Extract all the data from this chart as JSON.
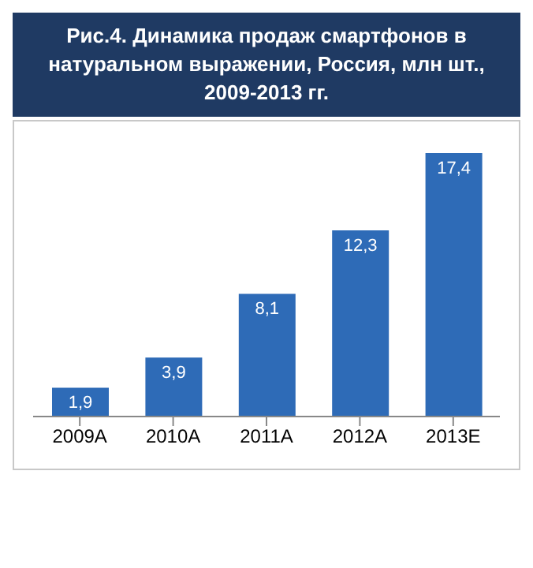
{
  "chart_data": {
    "type": "bar",
    "title": "Рис.4. Динамика продаж смартфонов в натуральном выражении, Россия, млн шт., 2009-2013  гг.",
    "categories": [
      "2009A",
      "2010A",
      "2011A",
      "2012A",
      "2013E"
    ],
    "values": [
      1.9,
      3.9,
      8.1,
      12.3,
      17.4
    ],
    "value_labels": [
      "1,9",
      "3,9",
      "8,1",
      "12,3",
      "17,4"
    ],
    "color": "#2e6bb7",
    "grid": false,
    "legend": false
  }
}
